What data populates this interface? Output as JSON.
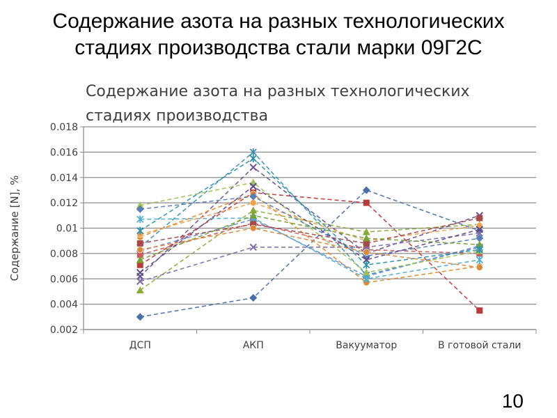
{
  "slide": {
    "title_line1": "Содержание азота на разных технологических",
    "title_line2": "стадиях производства стали марки 09Г2С",
    "page_number": "10"
  },
  "chart_data": {
    "type": "line",
    "title_line1": "Содержание азота на разных технологических",
    "title_line2": "стадиях производства",
    "ylabel": "Содержание [N], %",
    "xlabel": "",
    "categories": [
      "ДСП",
      "АКП",
      "Вакууматор",
      "В готовой стали"
    ],
    "ylim": [
      0.002,
      0.018
    ],
    "yticks": [
      "0.002",
      "0.004",
      "0.006",
      "0.008",
      "0.01",
      "0.012",
      "0.014",
      "0.016",
      "0.018"
    ],
    "grid": true,
    "line_style": "dashed",
    "series": [
      {
        "values": [
          0.003,
          0.0045,
          0.013,
          0.0098
        ],
        "color": "#4a6fa5",
        "marker": "diamond"
      },
      {
        "values": [
          0.0071,
          0.0128,
          0.012,
          0.0035
        ],
        "color": "#b83b3b",
        "marker": "square"
      },
      {
        "values": [
          0.0051,
          0.0114,
          0.0097,
          0.0103
        ],
        "color": "#8aaa3c",
        "marker": "triangle"
      },
      {
        "values": [
          0.0062,
          0.0148,
          0.008,
          0.011
        ],
        "color": "#6b4f8c",
        "marker": "x"
      },
      {
        "values": [
          0.0085,
          0.016,
          0.0063,
          0.0085
        ],
        "color": "#3c8fb0",
        "marker": "star"
      },
      {
        "values": [
          0.0093,
          0.0127,
          0.0057,
          0.007
        ],
        "color": "#e08a2e",
        "marker": "circle"
      },
      {
        "values": [
          0.0082,
          0.0107,
          0.0062,
          0.0086
        ],
        "color": "#6a8ccf",
        "marker": "diamond"
      },
      {
        "values": [
          0.0079,
          0.0104,
          0.0083,
          0.008
        ],
        "color": "#c95b5b",
        "marker": "square"
      },
      {
        "values": [
          0.0118,
          0.0136,
          0.0065,
          0.0082
        ],
        "color": "#9fbf5a",
        "marker": "triangle"
      },
      {
        "values": [
          0.0058,
          0.0085,
          0.0085,
          0.0096
        ],
        "color": "#7d6ca6",
        "marker": "x"
      },
      {
        "values": [
          0.0107,
          0.0108,
          0.006,
          0.0075
        ],
        "color": "#4faecc",
        "marker": "star"
      },
      {
        "values": [
          0.0095,
          0.012,
          0.009,
          0.0102
        ],
        "color": "#f0a050",
        "marker": "circle"
      },
      {
        "values": [
          0.0115,
          0.0125,
          0.0078,
          0.0092
        ],
        "color": "#5a7eb8",
        "marker": "diamond"
      },
      {
        "values": [
          0.0088,
          0.0103,
          0.0088,
          0.0108
        ],
        "color": "#a34a4a",
        "marker": "square"
      },
      {
        "values": [
          0.0075,
          0.011,
          0.0092,
          0.0087
        ],
        "color": "#77a03a",
        "marker": "triangle"
      },
      {
        "values": [
          0.0065,
          0.0133,
          0.0075,
          0.0099
        ],
        "color": "#5e4a84",
        "marker": "x"
      },
      {
        "values": [
          0.0098,
          0.0155,
          0.0071,
          0.0083
        ],
        "color": "#2e8fa8",
        "marker": "star"
      },
      {
        "values": [
          0.0083,
          0.01,
          0.0081,
          0.0069
        ],
        "color": "#d88a3c",
        "marker": "circle"
      }
    ]
  }
}
